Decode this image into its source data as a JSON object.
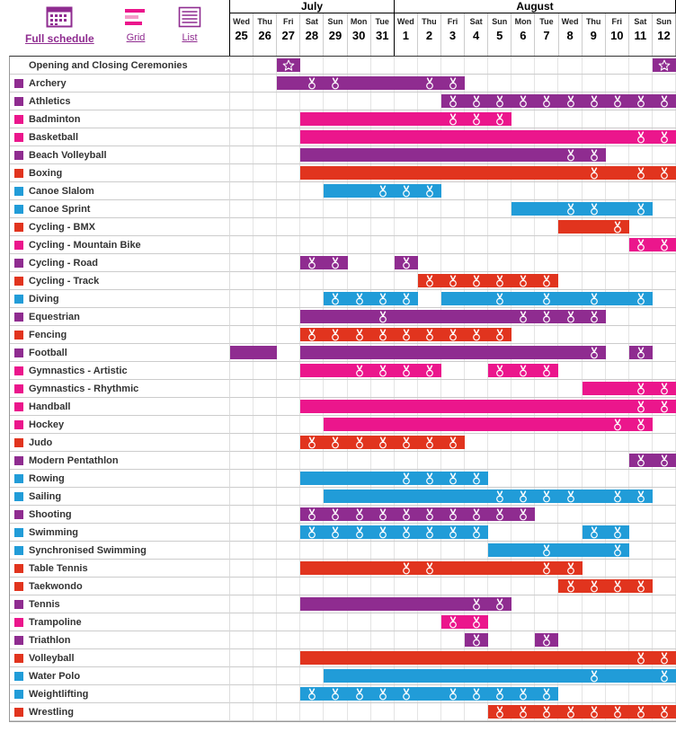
{
  "toolbar": {
    "views": [
      {
        "id": "full-schedule",
        "label": "Full schedule",
        "icon": "calendar-grid-icon",
        "active": true
      },
      {
        "id": "grid",
        "label": "Grid",
        "icon": "grid-bars-icon",
        "active": false
      },
      {
        "id": "list",
        "label": "List",
        "icon": "list-icon",
        "active": false
      }
    ]
  },
  "calendar": {
    "months": [
      {
        "label": "July",
        "days": 7
      },
      {
        "label": "August",
        "days": 12
      }
    ],
    "columns": [
      {
        "dow": "Wed",
        "date": "25"
      },
      {
        "dow": "Thu",
        "date": "26"
      },
      {
        "dow": "Fri",
        "date": "27"
      },
      {
        "dow": "Sat",
        "date": "28"
      },
      {
        "dow": "Sun",
        "date": "29"
      },
      {
        "dow": "Mon",
        "date": "30"
      },
      {
        "dow": "Tue",
        "date": "31"
      },
      {
        "dow": "Wed",
        "date": "1"
      },
      {
        "dow": "Thu",
        "date": "2"
      },
      {
        "dow": "Fri",
        "date": "3"
      },
      {
        "dow": "Sat",
        "date": "4"
      },
      {
        "dow": "Sun",
        "date": "5"
      },
      {
        "dow": "Mon",
        "date": "6"
      },
      {
        "dow": "Tue",
        "date": "7"
      },
      {
        "dow": "Wed",
        "date": "8"
      },
      {
        "dow": "Thu",
        "date": "9"
      },
      {
        "dow": "Fri",
        "date": "10"
      },
      {
        "dow": "Sat",
        "date": "11"
      },
      {
        "dow": "Sun",
        "date": "12"
      }
    ]
  },
  "colors": {
    "purple": "#8F2C90",
    "pink": "#EB168C",
    "red": "#E1341E",
    "blue": "#219CD8"
  },
  "rows": [
    {
      "sport": "Opening and Closing Ceremonies",
      "color": "purple",
      "swatch": false,
      "segments": [
        {
          "start": 2,
          "end": 2,
          "stars": [
            2
          ]
        },
        {
          "start": 18,
          "end": 18,
          "stars": [
            18
          ]
        }
      ]
    },
    {
      "sport": "Archery",
      "color": "purple",
      "segments": [
        {
          "start": 2,
          "end": 9,
          "medals": [
            3,
            4,
            8,
            9
          ]
        }
      ]
    },
    {
      "sport": "Athletics",
      "color": "purple",
      "segments": [
        {
          "start": 9,
          "end": 18,
          "medals": [
            9,
            10,
            11,
            12,
            13,
            14,
            15,
            16,
            17,
            18
          ]
        }
      ]
    },
    {
      "sport": "Badminton",
      "color": "pink",
      "segments": [
        {
          "start": 3,
          "end": 11,
          "medals": [
            9,
            10,
            11
          ]
        }
      ]
    },
    {
      "sport": "Basketball",
      "color": "pink",
      "segments": [
        {
          "start": 3,
          "end": 18,
          "medals": [
            17,
            18
          ]
        }
      ]
    },
    {
      "sport": "Beach Volleyball",
      "color": "purple",
      "segments": [
        {
          "start": 3,
          "end": 15,
          "medals": [
            14,
            15
          ]
        }
      ]
    },
    {
      "sport": "Boxing",
      "color": "red",
      "segments": [
        {
          "start": 3,
          "end": 18,
          "medals": [
            15,
            17,
            18
          ]
        }
      ]
    },
    {
      "sport": "Canoe Slalom",
      "color": "blue",
      "segments": [
        {
          "start": 4,
          "end": 8,
          "medals": [
            6,
            7,
            8
          ]
        }
      ]
    },
    {
      "sport": "Canoe Sprint",
      "color": "blue",
      "segments": [
        {
          "start": 12,
          "end": 17,
          "medals": [
            14,
            15,
            17
          ]
        }
      ]
    },
    {
      "sport": "Cycling - BMX",
      "color": "red",
      "segments": [
        {
          "start": 14,
          "end": 16,
          "medals": [
            16
          ]
        }
      ]
    },
    {
      "sport": "Cycling - Mountain Bike",
      "color": "pink",
      "segments": [
        {
          "start": 17,
          "end": 18,
          "medals": [
            17,
            18
          ]
        }
      ]
    },
    {
      "sport": "Cycling - Road",
      "color": "purple",
      "segments": [
        {
          "start": 3,
          "end": 4,
          "medals": [
            3,
            4
          ]
        },
        {
          "start": 7,
          "end": 7,
          "medals": [
            7
          ]
        }
      ]
    },
    {
      "sport": "Cycling - Track",
      "color": "red",
      "segments": [
        {
          "start": 8,
          "end": 13,
          "medals": [
            8,
            9,
            10,
            11,
            12,
            13
          ]
        }
      ]
    },
    {
      "sport": "Diving",
      "color": "blue",
      "segments": [
        {
          "start": 4,
          "end": 7,
          "medals": [
            4,
            5,
            6,
            7
          ]
        },
        {
          "start": 9,
          "end": 17,
          "medals": [
            11,
            13,
            15,
            17
          ]
        }
      ]
    },
    {
      "sport": "Equestrian",
      "color": "purple",
      "segments": [
        {
          "start": 3,
          "end": 15,
          "medals": [
            6,
            12,
            13,
            14,
            15
          ]
        }
      ]
    },
    {
      "sport": "Fencing",
      "color": "red",
      "segments": [
        {
          "start": 3,
          "end": 11,
          "medals": [
            3,
            4,
            5,
            6,
            7,
            8,
            9,
            10,
            11
          ]
        }
      ]
    },
    {
      "sport": "Football",
      "color": "purple",
      "segments": [
        {
          "start": 0,
          "end": 1
        },
        {
          "start": 3,
          "end": 15,
          "medals": [
            15
          ]
        },
        {
          "start": 17,
          "end": 17,
          "medals": [
            17
          ]
        }
      ]
    },
    {
      "sport": "Gymnastics - Artistic",
      "color": "pink",
      "segments": [
        {
          "start": 3,
          "end": 8,
          "medals": [
            5,
            6,
            7,
            8
          ]
        },
        {
          "start": 11,
          "end": 13,
          "medals": [
            11,
            12,
            13
          ]
        }
      ]
    },
    {
      "sport": "Gymnastics - Rhythmic",
      "color": "pink",
      "segments": [
        {
          "start": 15,
          "end": 18,
          "medals": [
            17,
            18
          ]
        }
      ]
    },
    {
      "sport": "Handball",
      "color": "pink",
      "segments": [
        {
          "start": 3,
          "end": 18,
          "medals": [
            17,
            18
          ]
        }
      ]
    },
    {
      "sport": "Hockey",
      "color": "pink",
      "segments": [
        {
          "start": 4,
          "end": 17,
          "medals": [
            16,
            17
          ]
        }
      ]
    },
    {
      "sport": "Judo",
      "color": "red",
      "segments": [
        {
          "start": 3,
          "end": 9,
          "medals": [
            3,
            4,
            5,
            6,
            7,
            8,
            9
          ]
        }
      ]
    },
    {
      "sport": "Modern Pentathlon",
      "color": "purple",
      "segments": [
        {
          "start": 17,
          "end": 18,
          "medals": [
            17,
            18
          ]
        }
      ]
    },
    {
      "sport": "Rowing",
      "color": "blue",
      "segments": [
        {
          "start": 3,
          "end": 10,
          "medals": [
            7,
            8,
            9,
            10
          ]
        }
      ]
    },
    {
      "sport": "Sailing",
      "color": "blue",
      "segments": [
        {
          "start": 4,
          "end": 17,
          "medals": [
            11,
            12,
            13,
            14,
            16,
            17
          ]
        }
      ]
    },
    {
      "sport": "Shooting",
      "color": "purple",
      "segments": [
        {
          "start": 3,
          "end": 12,
          "medals": [
            3,
            4,
            5,
            6,
            7,
            8,
            9,
            10,
            11,
            12
          ]
        }
      ]
    },
    {
      "sport": "Swimming",
      "color": "blue",
      "segments": [
        {
          "start": 3,
          "end": 10,
          "medals": [
            3,
            4,
            5,
            6,
            7,
            8,
            9,
            10
          ]
        },
        {
          "start": 15,
          "end": 16,
          "medals": [
            15,
            16
          ]
        }
      ]
    },
    {
      "sport": "Synchronised Swimming",
      "color": "blue",
      "segments": [
        {
          "start": 11,
          "end": 16,
          "medals": [
            13,
            16
          ]
        }
      ]
    },
    {
      "sport": "Table Tennis",
      "color": "red",
      "segments": [
        {
          "start": 3,
          "end": 14,
          "medals": [
            7,
            8,
            13,
            14
          ]
        }
      ]
    },
    {
      "sport": "Taekwondo",
      "color": "red",
      "segments": [
        {
          "start": 14,
          "end": 17,
          "medals": [
            14,
            15,
            16,
            17
          ]
        }
      ]
    },
    {
      "sport": "Tennis",
      "color": "purple",
      "segments": [
        {
          "start": 3,
          "end": 11,
          "medals": [
            10,
            11
          ]
        }
      ]
    },
    {
      "sport": "Trampoline",
      "color": "pink",
      "segments": [
        {
          "start": 9,
          "end": 10,
          "medals": [
            9,
            10
          ]
        }
      ]
    },
    {
      "sport": "Triathlon",
      "color": "purple",
      "segments": [
        {
          "start": 10,
          "end": 10,
          "medals": [
            10
          ]
        },
        {
          "start": 13,
          "end": 13,
          "medals": [
            13
          ]
        }
      ]
    },
    {
      "sport": "Volleyball",
      "color": "red",
      "segments": [
        {
          "start": 3,
          "end": 18,
          "medals": [
            17,
            18
          ]
        }
      ]
    },
    {
      "sport": "Water Polo",
      "color": "blue",
      "segments": [
        {
          "start": 4,
          "end": 18,
          "medals": [
            15,
            18
          ]
        }
      ]
    },
    {
      "sport": "Weightlifting",
      "color": "blue",
      "segments": [
        {
          "start": 3,
          "end": 13,
          "medals": [
            3,
            4,
            5,
            6,
            7,
            9,
            10,
            11,
            12,
            13
          ]
        }
      ]
    },
    {
      "sport": "Wrestling",
      "color": "red",
      "segments": [
        {
          "start": 11,
          "end": 18,
          "medals": [
            11,
            12,
            13,
            14,
            15,
            16,
            17,
            18
          ]
        }
      ]
    }
  ]
}
